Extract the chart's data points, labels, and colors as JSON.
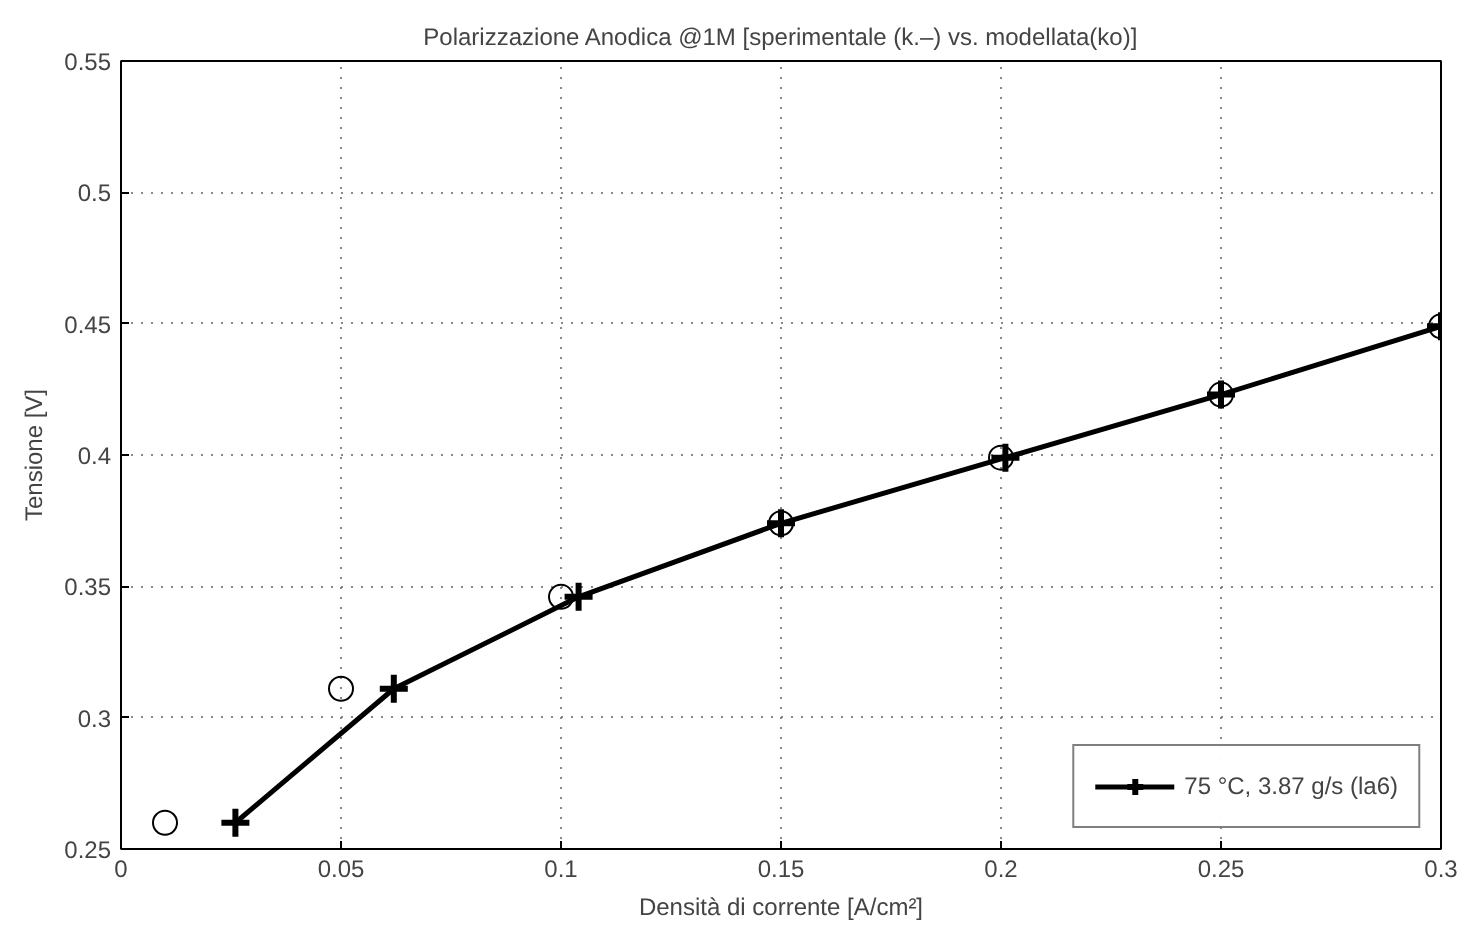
{
  "chart_data": {
    "type": "line",
    "title": "Polarizzazione Anodica @1M [sperimentale (k.–) vs. modellata(ko)]",
    "xlabel": "Densità di corrente [A/cm²]",
    "ylabel": "Tensione [V]",
    "xlim": [
      0,
      0.3
    ],
    "xticks": [
      0,
      0.05,
      0.1,
      0.15,
      0.2,
      0.25,
      0.3
    ],
    "ylim": [
      0.25,
      0.55
    ],
    "yticks": [
      0.25,
      0.3,
      0.35,
      0.4,
      0.45,
      0.5,
      0.55
    ],
    "grid": true,
    "legend": "bottom right",
    "series": [
      {
        "name": "75 °C, 3.87 g/s (la6)",
        "marker": "cross",
        "line_style": "solid",
        "color": "#000000",
        "x": [
          0.026,
          0.062,
          0.104,
          0.15,
          0.201,
          0.25,
          0.3
        ],
        "values": [
          0.26,
          0.311,
          0.346,
          0.374,
          0.399,
          0.423,
          0.449
        ]
      },
      {
        "type": "scatter",
        "marker": "circle",
        "color": "#000000",
        "x": [
          0.01,
          0.05,
          0.1,
          0.15,
          0.2,
          0.25,
          0.3
        ],
        "values": [
          0.26,
          0.311,
          0.346,
          0.374,
          0.399,
          0.423,
          0.449
        ]
      }
    ]
  }
}
